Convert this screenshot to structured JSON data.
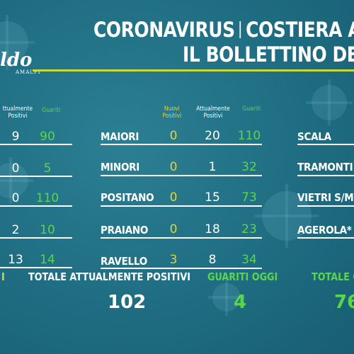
{
  "header": {
    "title_left": "CORONAVIRUS",
    "title_right": "COSTIERA A",
    "subtitle": "IL BOLLETTINO DE"
  },
  "logo": {
    "main": "ldo",
    "sub": "AMALFI"
  },
  "left_table": {
    "col_attuali": "ttualmente\nPositivi",
    "col_guariti": "Guariti",
    "rows": [
      {
        "attuali": "9",
        "guariti": "90"
      },
      {
        "attuali": "0",
        "guariti": "5"
      },
      {
        "attuali": "0",
        "guariti": "110"
      },
      {
        "attuali": "2",
        "guariti": "10"
      },
      {
        "attuali": "13",
        "guariti": "14"
      }
    ]
  },
  "mid_table": {
    "col_nuovi": "Nuovi\nPositivi",
    "col_attuali": "Attualmente\nPositivi",
    "col_guariti": "Guariti",
    "rows": [
      {
        "town": "MAIORI",
        "nuovi": "0",
        "attuali": "20",
        "guariti": "110"
      },
      {
        "town": "MINORI",
        "nuovi": "0",
        "attuali": "1",
        "guariti": "32"
      },
      {
        "town": "POSITANO",
        "nuovi": "0",
        "attuali": "15",
        "guariti": "73"
      },
      {
        "town": "PRAIANO",
        "nuovi": "0",
        "attuali": "18",
        "guariti": "23"
      },
      {
        "town": "RAVELLO",
        "nuovi": "3",
        "attuali": "8",
        "guariti": "34"
      }
    ]
  },
  "right_table": {
    "rows": [
      {
        "town": "SCALA"
      },
      {
        "town": "TRAMONTI"
      },
      {
        "town": "VIETRI S/M"
      },
      {
        "town": "AGEROLA*"
      }
    ]
  },
  "footer": {
    "left_fragment": "I",
    "totale_attuali_label": "TOTALE ATTUALMENTE POSITIVI",
    "totale_attuali_value": "102",
    "guariti_oggi_label": "GUARITI OGGI",
    "guariti_oggi_value": "4",
    "totale_g_label": "TOTALE G",
    "totale_g_value": "76"
  },
  "colors": {
    "background": "#1f6d82",
    "accent_green": "#5bd64a",
    "accent_yellow": "#e6d33a",
    "underline": "#c9d93a"
  }
}
